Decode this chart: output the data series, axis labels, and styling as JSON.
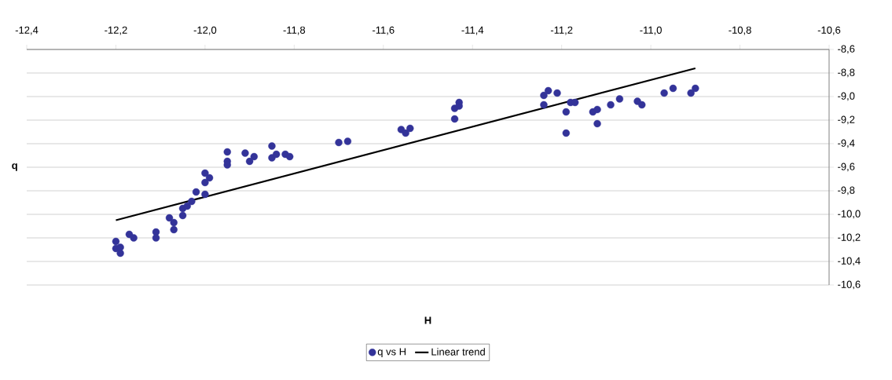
{
  "chart_data": {
    "type": "scatter",
    "xlabel": "H",
    "ylabel": "q",
    "xlim": [
      -12.4,
      -10.6
    ],
    "ylim": [
      -10.6,
      -8.6
    ],
    "xticks": [
      {
        "value": -12.4,
        "label": "-12,4"
      },
      {
        "value": -12.2,
        "label": "-12,2"
      },
      {
        "value": -12.0,
        "label": "-12,0"
      },
      {
        "value": -11.8,
        "label": "-11,8"
      },
      {
        "value": -11.6,
        "label": "-11,6"
      },
      {
        "value": -11.4,
        "label": "-11,4"
      },
      {
        "value": -11.2,
        "label": "-11,2"
      },
      {
        "value": -11.0,
        "label": "-11,0"
      },
      {
        "value": -10.8,
        "label": "-10,8"
      },
      {
        "value": -10.6,
        "label": "-10,6"
      }
    ],
    "yticks": [
      {
        "value": -10.6,
        "label": "-10,6"
      },
      {
        "value": -10.4,
        "label": "-10,4"
      },
      {
        "value": -10.2,
        "label": "-10,2"
      },
      {
        "value": -10.0,
        "label": "-10,0"
      },
      {
        "value": -9.8,
        "label": "-9,8"
      },
      {
        "value": -9.6,
        "label": "-9,6"
      },
      {
        "value": -9.4,
        "label": "-9,4"
      },
      {
        "value": -9.2,
        "label": "-9,2"
      },
      {
        "value": -9.0,
        "label": "-9,0"
      },
      {
        "value": -8.8,
        "label": "-8,8"
      },
      {
        "value": -8.6,
        "label": "-8,6"
      }
    ],
    "grid": "y",
    "legend": "bottom",
    "series": [
      {
        "name": "q vs H",
        "color": "#333399",
        "marker": "circle",
        "x": [
          -12.2,
          -12.2,
          -12.19,
          -12.19,
          -12.17,
          -12.16,
          -12.11,
          -12.11,
          -12.08,
          -12.07,
          -12.07,
          -12.05,
          -12.05,
          -12.04,
          -12.03,
          -12.02,
          -12.0,
          -11.99,
          -12.0,
          -12.0,
          -11.95,
          -11.95,
          -11.95,
          -11.91,
          -11.9,
          -11.89,
          -11.85,
          -11.85,
          -11.84,
          -11.82,
          -11.81,
          -11.7,
          -11.68,
          -11.56,
          -11.54,
          -11.55,
          -11.44,
          -11.43,
          -11.43,
          -11.44,
          -11.24,
          -11.24,
          -11.23,
          -11.21,
          -11.19,
          -11.19,
          -11.18,
          -11.17,
          -11.13,
          -11.12,
          -11.12,
          -11.09,
          -11.07,
          -11.03,
          -11.02,
          -10.97,
          -10.95,
          -10.91,
          -10.9
        ],
        "values": [
          -10.23,
          -10.29,
          -10.33,
          -10.28,
          -10.17,
          -10.2,
          -10.15,
          -10.2,
          -10.03,
          -10.07,
          -10.13,
          -10.01,
          -9.95,
          -9.93,
          -9.89,
          -9.81,
          -9.65,
          -9.69,
          -9.73,
          -9.83,
          -9.47,
          -9.55,
          -9.58,
          -9.48,
          -9.55,
          -9.51,
          -9.42,
          -9.52,
          -9.49,
          -9.49,
          -9.51,
          -9.39,
          -9.38,
          -9.28,
          -9.27,
          -9.31,
          -9.1,
          -9.05,
          -9.08,
          -9.19,
          -9.07,
          -8.99,
          -8.95,
          -8.97,
          -9.31,
          -9.13,
          -9.05,
          -9.05,
          -9.13,
          -9.11,
          -9.23,
          -9.07,
          -9.02,
          -9.04,
          -9.07,
          -8.97,
          -8.93,
          -8.97,
          -8.93
        ]
      },
      {
        "name": "Linear trend",
        "type": "line",
        "color": "#000000",
        "x": [
          -12.2,
          -10.9
        ],
        "values": [
          -10.05,
          -8.76
        ]
      }
    ]
  }
}
